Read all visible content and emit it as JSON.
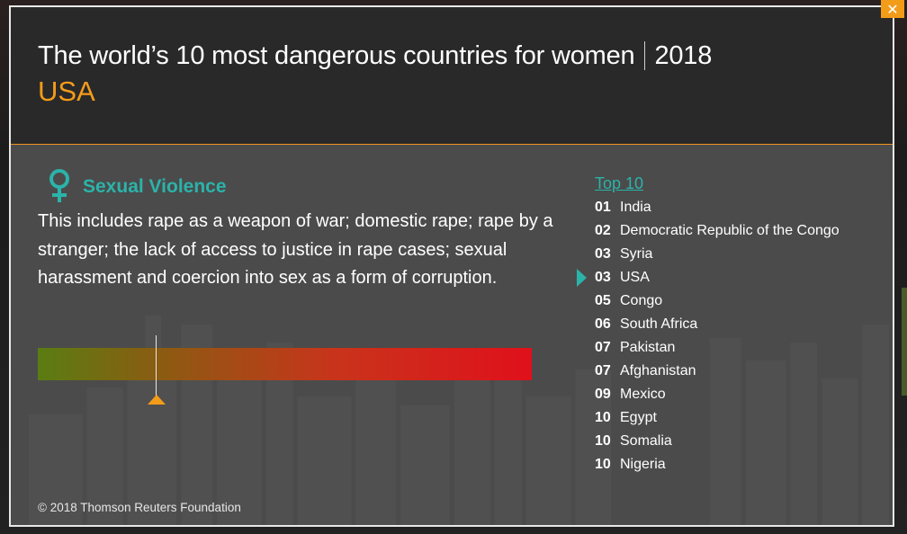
{
  "header": {
    "title": "The world’s 10 most dangerous countries for women",
    "year": "2018",
    "country": "USA"
  },
  "category": {
    "icon": "female-symbol-icon",
    "title": "Sexual Violence",
    "description": "This includes rape as a weapon of war; domestic rape; rape by a stranger; the lack of access to justice in rape cases; sexual harassment and coercion into sex as a form of corruption."
  },
  "severity": {
    "level": 0.24,
    "gradient_colors": [
      "#5a7d12",
      "#c8341b",
      "#e0101b"
    ],
    "marker_color": "#f39c1a"
  },
  "top10": {
    "heading": "Top 10",
    "current_index": 3,
    "items": [
      {
        "rank": "01",
        "country": "India"
      },
      {
        "rank": "02",
        "country": "Democratic Republic of the Congo"
      },
      {
        "rank": "03",
        "country": "Syria"
      },
      {
        "rank": "03",
        "country": "USA"
      },
      {
        "rank": "05",
        "country": "Congo"
      },
      {
        "rank": "06",
        "country": "South Africa"
      },
      {
        "rank": "07",
        "country": "Pakistan"
      },
      {
        "rank": "07",
        "country": "Afghanistan"
      },
      {
        "rank": "09",
        "country": "Mexico"
      },
      {
        "rank": "10",
        "country": "Egypt"
      },
      {
        "rank": "10",
        "country": "Somalia"
      },
      {
        "rank": "10",
        "country": "Nigeria"
      }
    ]
  },
  "footer": {
    "copyright": "© 2018 Thomson Reuters Foundation"
  },
  "close": {
    "icon": "close-icon",
    "label": "✕"
  },
  "colors": {
    "accent_orange": "#f39c1a",
    "accent_teal": "#2bb3aa",
    "header_bg": "#292929",
    "body_bg": "#4b4b4b"
  }
}
